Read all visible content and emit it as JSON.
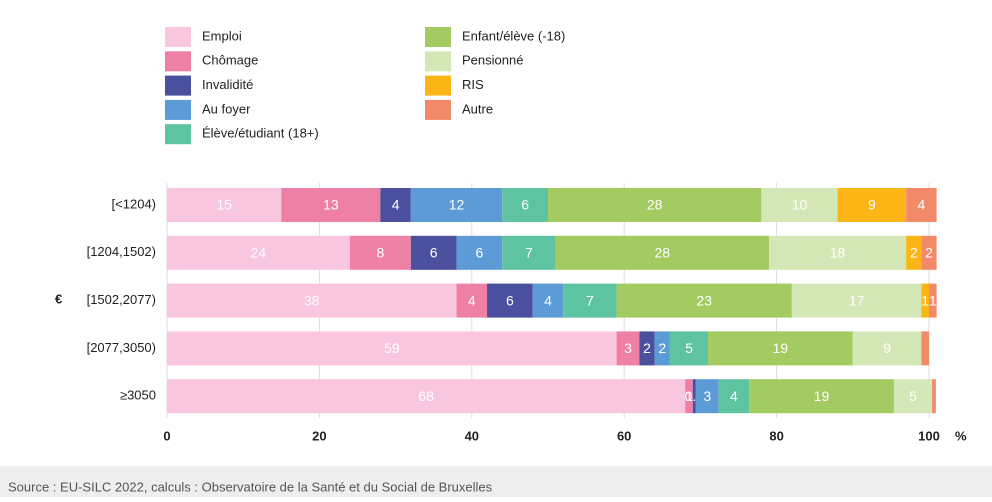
{
  "chart_data": {
    "type": "stacked-bar-horizontal",
    "y_label": "€",
    "x_unit": "%",
    "source": "Source : EU-SILC 2022, calculs : Observatoire de la Santé et du Social de Bruxelles",
    "categories": [
      "[<1204)",
      "[1204,1502)",
      "[1502,2077)",
      "[2077,3050)",
      "≥3050"
    ],
    "xlim": [
      0,
      100
    ],
    "xticks": [
      0,
      20,
      40,
      60,
      80,
      100
    ],
    "grid": true,
    "series": [
      {
        "name": "Emploi",
        "color": "#f8c6df",
        "values": [
          15,
          24,
          38,
          59,
          68
        ]
      },
      {
        "name": "Chômage",
        "color": "#ee80a6",
        "values": [
          13,
          8,
          4,
          3,
          1
        ]
      },
      {
        "name": "Invalidité",
        "color": "#4a4f9e",
        "values": [
          4,
          6,
          6,
          2,
          0.4
        ]
      },
      {
        "name": "Au foyer",
        "color": "#5c9bd6",
        "values": [
          12,
          6,
          4,
          2,
          3
        ]
      },
      {
        "name": "Élève/étudiant (18+)",
        "color": "#5dc3a0",
        "values": [
          6,
          7,
          7,
          5,
          4
        ]
      },
      {
        "name": "Enfant/élève (-18)",
        "color": "#a4cb62",
        "values": [
          28,
          28,
          23,
          19,
          19
        ]
      },
      {
        "name": "Pensionné",
        "color": "#d4e7b6",
        "values": [
          10,
          18,
          17,
          9,
          5
        ]
      },
      {
        "name": "RIS",
        "color": "#fbb516",
        "values": [
          9,
          2,
          1,
          0,
          0
        ],
        "value_labels": [
          "9",
          "2",
          "1",
          null,
          null
        ]
      },
      {
        "name": "Autre",
        "color": "#f28a6a",
        "values": [
          4,
          2,
          1,
          1,
          0.5
        ],
        "value_labels": [
          "4",
          "2",
          "1",
          null,
          null
        ]
      }
    ]
  }
}
